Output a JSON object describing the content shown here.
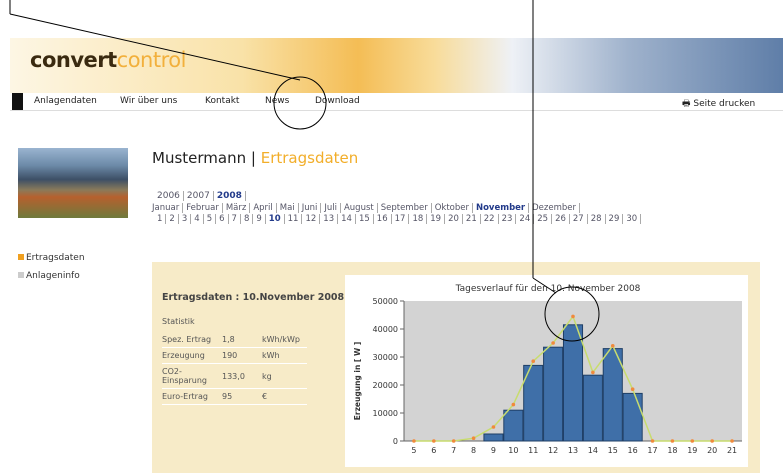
{
  "header": {
    "logo_part1": "convert",
    "logo_part2": "control"
  },
  "nav": {
    "items": [
      "Anlagendaten",
      "Wir über uns",
      "Kontakt",
      "News",
      "Download"
    ],
    "print": "Seite drucken"
  },
  "sidebar": {
    "links": [
      "Ertragsdaten",
      "Anlageninfo"
    ]
  },
  "heading": {
    "name": "Mustermann",
    "separator": "|",
    "page": "Ertragsdaten"
  },
  "years": [
    "2006",
    "2007",
    "2008"
  ],
  "months": [
    "Januar",
    "Februar",
    "März",
    "April",
    "Mai",
    "Juni",
    "Juli",
    "August",
    "September",
    "Oktober",
    "November",
    "Dezember"
  ],
  "days": [
    1,
    2,
    3,
    4,
    5,
    6,
    7,
    8,
    9,
    10,
    11,
    12,
    13,
    14,
    15,
    16,
    17,
    18,
    19,
    20,
    21,
    22,
    23,
    24,
    25,
    26,
    27,
    28,
    29,
    30
  ],
  "stats": {
    "title": "Ertragsdaten : 10.November 2008",
    "subtitle": "Statistik",
    "rows": [
      [
        "Spez. Ertrag",
        "1,8",
        "kWh/kWp"
      ],
      [
        "Erzeugung",
        "190",
        "kWh"
      ],
      [
        "CO2-Einsparung",
        "133,0",
        "kg"
      ],
      [
        "Euro-Ertrag",
        "95",
        "€"
      ]
    ]
  },
  "chart_data": {
    "type": "bar",
    "title": "Tagesverlauf für den 10. November 2008",
    "y_label": "Erzeugung in [ W ]",
    "categories": [
      "5",
      "6",
      "7",
      "8",
      "9",
      "10",
      "11",
      "12",
      "13",
      "14",
      "15",
      "16",
      "17",
      "18",
      "19",
      "20",
      "21"
    ],
    "series": [
      {
        "color": "#3f6fa8",
        "values": [
          0,
          0,
          0,
          0,
          2500,
          11000,
          27000,
          33500,
          41500,
          23500,
          33000,
          17000,
          0,
          0,
          0,
          0,
          0
        ]
      },
      {
        "color": "#c8dc6e",
        "values": [
          0,
          0,
          0,
          1000,
          5000,
          13000,
          28500,
          35000,
          44500,
          24500,
          34000,
          18500,
          0,
          0,
          0,
          0,
          0
        ]
      }
    ],
    "ylim": [
      0,
      50000
    ],
    "yticks": [
      0,
      10000,
      20000,
      30000,
      40000,
      50000
    ],
    "grid": false
  }
}
